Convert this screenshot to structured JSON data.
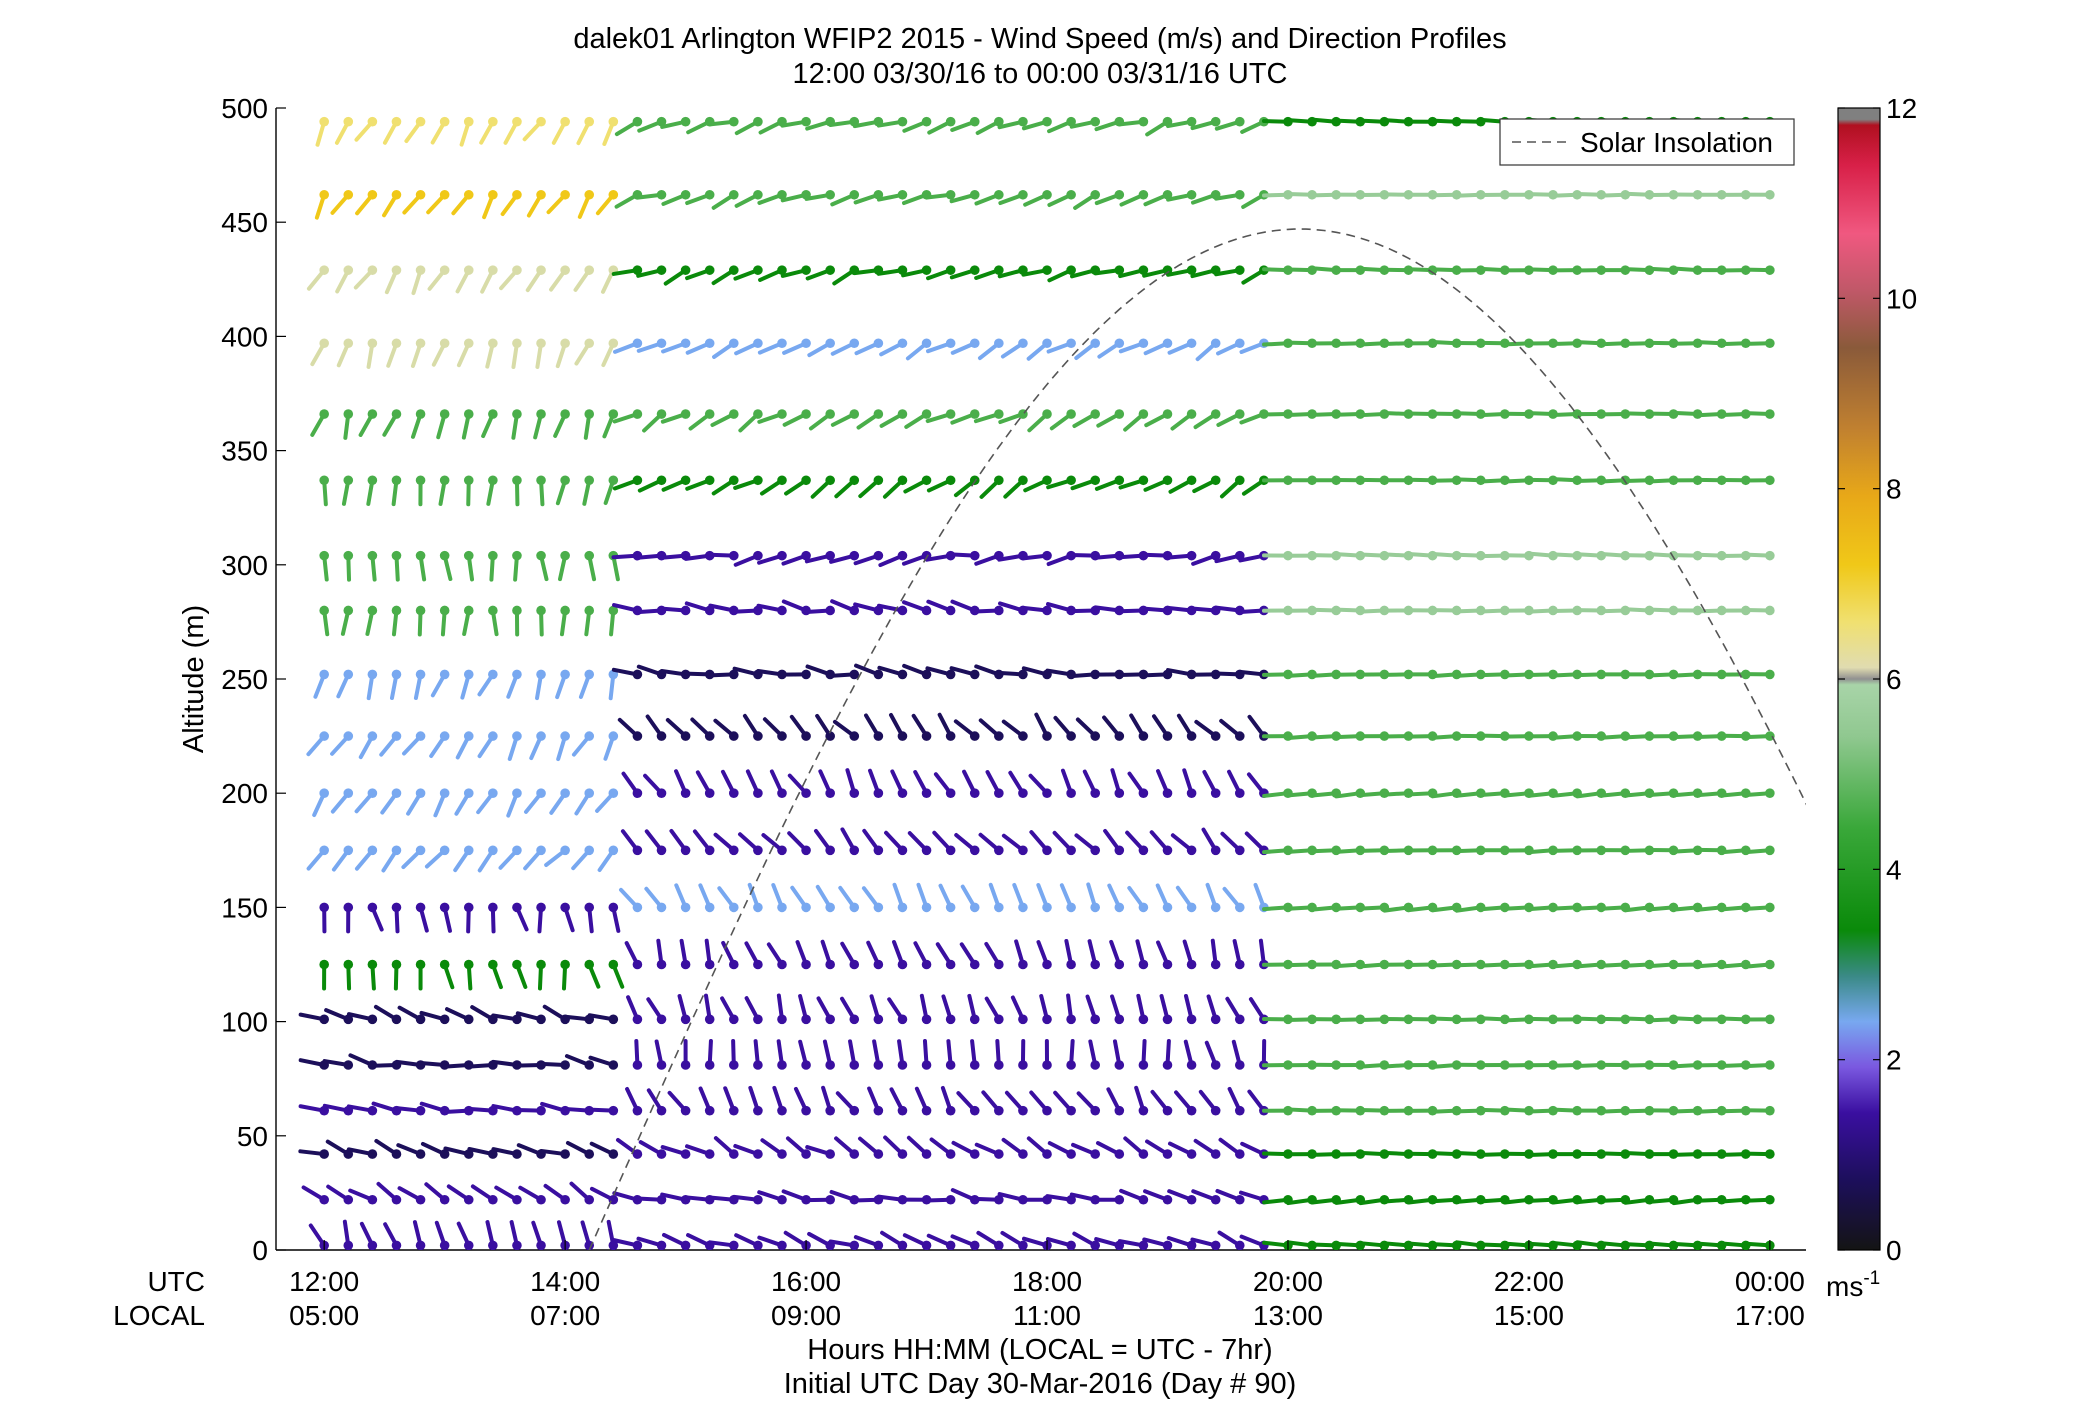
{
  "chart_data": {
    "type": "wind-barb-profile",
    "title": "dalek01 Arlington WFIP2 2015 - Wind Speed (m/s) and Direction Profiles",
    "subtitle": "12:00 03/30/16 to 00:00 03/31/16  UTC",
    "ylabel": "Altitude (m)",
    "ylim": [
      0,
      500
    ],
    "yticks": [
      "0",
      "50",
      "100",
      "150",
      "200",
      "250",
      "300",
      "350",
      "400",
      "450",
      "500"
    ],
    "xlim_hours_utc": [
      11.6,
      24.3
    ],
    "xticks_utc": [
      "12:00",
      "14:00",
      "16:00",
      "18:00",
      "20:00",
      "22:00",
      "00:00"
    ],
    "xticks_local": [
      "05:00",
      "07:00",
      "09:00",
      "11:00",
      "13:00",
      "15:00",
      "17:00"
    ],
    "xrow_label_utc": "UTC",
    "xrow_label_local": "LOCAL",
    "xlabel": "Hours HH:MM  (LOCAL = UTC - 7hr)",
    "xlabel2": "Initial UTC Day 30-Mar-2016 (Day # 90)",
    "colorbar": {
      "range": [
        0,
        12
      ],
      "ticks": [
        "0",
        "2",
        "4",
        "6",
        "8",
        "10",
        "12"
      ],
      "unit_base": "ms",
      "unit_exp": "-1",
      "colors": {
        "purple": "#3a0fa0",
        "navy": "#1c0f5a",
        "blue": "#78a8f0",
        "teal": "#3a8a86",
        "dkgreen": "#0a8a0a",
        "green": "#4aae4a",
        "ltgreen": "#98cc98",
        "pale": "#d8dca8",
        "ltyellow": "#f0e070",
        "yellow": "#f0c818",
        "orange": "#e0a020",
        "brown": "#a06838",
        "gray": "#a8a8a8"
      }
    },
    "legend": {
      "entries": [
        "Solar Insolation"
      ],
      "placement": "top-right"
    },
    "solar_insolation_curve": {
      "style": "dashed",
      "start_hour_utc": 14.2,
      "peak_hour_utc": 20.1,
      "peak_altitude_m": 447,
      "end_hour_utc": 24.5,
      "end_altitude_m": 180
    },
    "heights_m": [
      2,
      22,
      42,
      61,
      81,
      101,
      125,
      150,
      175,
      200,
      225,
      252,
      280,
      304,
      337,
      366,
      397,
      429,
      462,
      494
    ],
    "times_utc": [
      12.0,
      12.2,
      12.4,
      12.6,
      12.8,
      13.0,
      13.2,
      13.4,
      13.6,
      13.8,
      14.0,
      14.2,
      14.4,
      14.6,
      14.8,
      15.0,
      15.2,
      15.4,
      15.6,
      15.8,
      16.0,
      16.2,
      16.4,
      16.6,
      16.8,
      17.0,
      17.2,
      17.4,
      17.6,
      17.8,
      18.0,
      18.2,
      18.4,
      18.6,
      18.8,
      19.0,
      19.2,
      19.4,
      19.6,
      19.8,
      20.0,
      20.2,
      20.4,
      20.6,
      20.8,
      21.0,
      21.2,
      21.4,
      21.6,
      21.8,
      22.0,
      22.2,
      22.4,
      22.6,
      22.8,
      23.0,
      23.2,
      23.4,
      23.6,
      23.8,
      24.0
    ],
    "profiles": [
      {
        "regime": "nighttime",
        "t_start": 12.0,
        "t_end": 14.6,
        "direction_from_deg": [
          340,
          300,
          290,
          280,
          280,
          290,
          170,
          170,
          220,
          210,
          210,
          200,
          180,
          180,
          190,
          200,
          200,
          210,
          210,
          210
        ],
        "color_by_height": [
          "purple",
          "purple",
          "navy",
          "purple",
          "navy",
          "navy",
          "dkgreen",
          "purple",
          "blue",
          "blue",
          "blue",
          "blue",
          "green",
          "green",
          "green",
          "green",
          "pale",
          "pale",
          "yellow",
          "ltyellow"
        ]
      },
      {
        "regime": "convective",
        "t_start": 14.6,
        "t_end": 20.0,
        "direction_from_deg": [
          290,
          280,
          300,
          330,
          350,
          340,
          340,
          330,
          320,
          330,
          320,
          280,
          280,
          260,
          240,
          240,
          240,
          250,
          250,
          250
        ],
        "color_by_height": [
          "purple",
          "purple",
          "purple",
          "purple",
          "purple",
          "purple",
          "purple",
          "blue",
          "purple",
          "purple",
          "navy",
          "navy",
          "purple",
          "purple",
          "dkgreen",
          "green",
          "blue",
          "dkgreen",
          "green",
          "green"
        ]
      },
      {
        "regime": "afternoon",
        "t_start": 20.0,
        "t_end": 24.2,
        "direction_from_deg": [
          275,
          265,
          270,
          270,
          268,
          270,
          268,
          265,
          268,
          265,
          268,
          268,
          270,
          272,
          270,
          270,
          270,
          272,
          270,
          272
        ],
        "color_by_height": [
          "dkgreen",
          "dkgreen",
          "dkgreen",
          "green",
          "green",
          "green",
          "green",
          "green",
          "green",
          "green",
          "green",
          "green",
          "ltgreen",
          "ltgreen",
          "green",
          "green",
          "green",
          "green",
          "ltgreen",
          "dkgreen"
        ]
      }
    ]
  }
}
